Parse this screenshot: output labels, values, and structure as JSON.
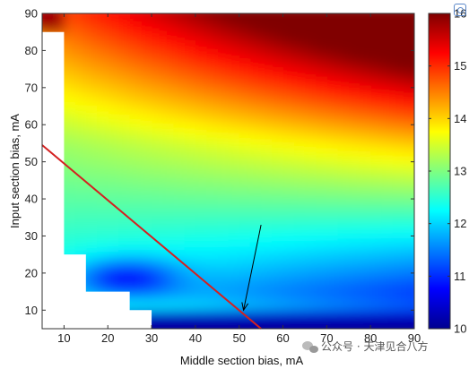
{
  "chart_data": {
    "type": "heatmap",
    "title": "",
    "xlabel": "Middle section bias, mA",
    "ylabel": "Input section bias, mA",
    "xlim": [
      5,
      90
    ],
    "ylim": [
      5,
      90
    ],
    "xticks": [
      10,
      20,
      30,
      40,
      50,
      60,
      70,
      80,
      90
    ],
    "yticks": [
      10,
      20,
      30,
      40,
      50,
      60,
      70,
      80,
      90
    ],
    "colorbar": {
      "range": [
        10,
        16
      ],
      "ticks": [
        10,
        11,
        12,
        13,
        14,
        15,
        16
      ],
      "colormap": "jet"
    },
    "masked_region": [
      [
        5,
        90
      ],
      [
        5,
        85
      ],
      [
        10,
        85
      ],
      [
        10,
        25
      ],
      [
        15,
        25
      ],
      [
        15,
        15
      ],
      [
        25,
        15
      ],
      [
        25,
        10
      ],
      [
        30,
        10
      ],
      [
        30,
        5
      ],
      [
        5,
        5
      ]
    ],
    "line": {
      "color": "#d42020",
      "points": [
        [
          5,
          54.5
        ],
        [
          55,
          5
        ]
      ]
    },
    "arrow": {
      "from": [
        55,
        33
      ],
      "to": [
        51,
        10
      ]
    },
    "surface_description": "jet colormap: ~10 low band at bottom, ~11 blue well near x 15-35 y 15-22, ~12.5 cyan mid, ~13 yellow, rising to ~15 red top-right"
  },
  "watermark": {
    "text": "公众号 · 天津见合八方",
    "icon": "wechat-icon"
  }
}
